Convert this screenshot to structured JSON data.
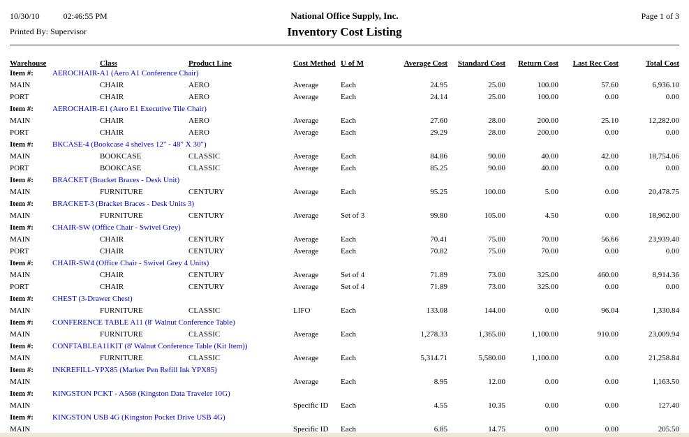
{
  "colors": {
    "link": "#0000cc",
    "window_edge": "#ece9d8"
  },
  "header": {
    "date": "10/30/10",
    "time": "02:46:55 PM",
    "printed_by": "Printed By: Supervisor",
    "company": "National Office Supply, Inc.",
    "title": "Inventory Cost Listing",
    "page": "Page 1 of 3"
  },
  "table": {
    "item_label": "Item #:",
    "columns": [
      "Warehouse",
      "Class",
      "Product Line",
      "Cost Method",
      "U of M",
      "Average Cost",
      "Standard Cost",
      "Return Cost",
      "Last Rec Cost",
      "Total Cost"
    ],
    "field_order": [
      "warehouse",
      "class",
      "product_line",
      "cost_method",
      "uom",
      "average_cost",
      "standard_cost",
      "return_cost",
      "last_rec_cost",
      "total_cost"
    ],
    "numeric_fields": [
      "average_cost",
      "standard_cost",
      "return_cost",
      "last_rec_cost",
      "total_cost"
    ],
    "items": [
      {
        "code_desc": "AEROCHAIR-A1 (Aero A1 Conference Chair)",
        "rows": [
          {
            "warehouse": "MAIN",
            "class": "CHAIR",
            "product_line": "AERO",
            "cost_method": "Average",
            "uom": "Each",
            "average_cost": "24.95",
            "standard_cost": "25.00",
            "return_cost": "100.00",
            "last_rec_cost": "57.60",
            "total_cost": "6,936.10"
          },
          {
            "warehouse": "PORT",
            "class": "CHAIR",
            "product_line": "AERO",
            "cost_method": "Average",
            "uom": "Each",
            "average_cost": "24.14",
            "standard_cost": "25.00",
            "return_cost": "100.00",
            "last_rec_cost": "0.00",
            "total_cost": "0.00"
          }
        ]
      },
      {
        "code_desc": "AEROCHAIR-E1 (Aero E1 Executive Tile Chair)",
        "rows": [
          {
            "warehouse": "MAIN",
            "class": "CHAIR",
            "product_line": "AERO",
            "cost_method": "Average",
            "uom": "Each",
            "average_cost": "27.60",
            "standard_cost": "28.00",
            "return_cost": "200.00",
            "last_rec_cost": "25.10",
            "total_cost": "12,282.00"
          },
          {
            "warehouse": "PORT",
            "class": "CHAIR",
            "product_line": "AERO",
            "cost_method": "Average",
            "uom": "Each",
            "average_cost": "29.29",
            "standard_cost": "28.00",
            "return_cost": "200.00",
            "last_rec_cost": "0.00",
            "total_cost": "0.00"
          }
        ]
      },
      {
        "code_desc": "BKCASE-4 (Bookcase 4 shelves 12\" - 48\" X 30\")",
        "rows": [
          {
            "warehouse": "MAIN",
            "class": "BOOKCASE",
            "product_line": "CLASSIC",
            "cost_method": "Average",
            "uom": "Each",
            "average_cost": "84.86",
            "standard_cost": "90.00",
            "return_cost": "40.00",
            "last_rec_cost": "42.00",
            "total_cost": "18,754.06"
          },
          {
            "warehouse": "PORT",
            "class": "BOOKCASE",
            "product_line": "CLASSIC",
            "cost_method": "Average",
            "uom": "Each",
            "average_cost": "85.25",
            "standard_cost": "90.00",
            "return_cost": "40.00",
            "last_rec_cost": "0.00",
            "total_cost": "0.00"
          }
        ]
      },
      {
        "code_desc": "BRACKET (Bracket Braces - Desk Unit)",
        "rows": [
          {
            "warehouse": "MAIN",
            "class": "FURNITURE",
            "product_line": "CENTURY",
            "cost_method": "Average",
            "uom": "Each",
            "average_cost": "95.25",
            "standard_cost": "100.00",
            "return_cost": "5.00",
            "last_rec_cost": "0.00",
            "total_cost": "20,478.75"
          }
        ]
      },
      {
        "code_desc": "BRACKET-3 (Bracket Braces - Desk Units 3)",
        "rows": [
          {
            "warehouse": "MAIN",
            "class": "FURNITURE",
            "product_line": "CENTURY",
            "cost_method": "Average",
            "uom": "Set of 3",
            "average_cost": "99.80",
            "standard_cost": "105.00",
            "return_cost": "4.50",
            "last_rec_cost": "0.00",
            "total_cost": "18,962.00"
          }
        ]
      },
      {
        "code_desc": "CHAIR-SW (Office Chair - Swivel Grey)",
        "rows": [
          {
            "warehouse": "MAIN",
            "class": "CHAIR",
            "product_line": "CENTURY",
            "cost_method": "Average",
            "uom": "Each",
            "average_cost": "70.41",
            "standard_cost": "75.00",
            "return_cost": "70.00",
            "last_rec_cost": "56.66",
            "total_cost": "23,939.40"
          },
          {
            "warehouse": "PORT",
            "class": "CHAIR",
            "product_line": "CENTURY",
            "cost_method": "Average",
            "uom": "Each",
            "average_cost": "70.82",
            "standard_cost": "75.00",
            "return_cost": "70.00",
            "last_rec_cost": "0.00",
            "total_cost": "0.00"
          }
        ]
      },
      {
        "code_desc": "CHAIR-SW4 (Office Chair - Swivel Grey 4 Units)",
        "rows": [
          {
            "warehouse": "MAIN",
            "class": "CHAIR",
            "product_line": "CENTURY",
            "cost_method": "Average",
            "uom": "Set of 4",
            "average_cost": "71.89",
            "standard_cost": "73.00",
            "return_cost": "325.00",
            "last_rec_cost": "460.00",
            "total_cost": "8,914.36"
          },
          {
            "warehouse": "PORT",
            "class": "CHAIR",
            "product_line": "CENTURY",
            "cost_method": "Average",
            "uom": "Set of 4",
            "average_cost": "71.89",
            "standard_cost": "73.00",
            "return_cost": "325.00",
            "last_rec_cost": "0.00",
            "total_cost": "0.00"
          }
        ]
      },
      {
        "code_desc": "CHEST (3-Drawer Chest)",
        "rows": [
          {
            "warehouse": "MAIN",
            "class": "FURNITURE",
            "product_line": "CLASSIC",
            "cost_method": "LIFO",
            "uom": "Each",
            "average_cost": "133.08",
            "standard_cost": "144.00",
            "return_cost": "0.00",
            "last_rec_cost": "96.04",
            "total_cost": "1,330.84"
          }
        ]
      },
      {
        "code_desc": "CONFERENCE TABLE A11 (8' Walnut Conference Table)",
        "rows": [
          {
            "warehouse": "MAIN",
            "class": "FURNITURE",
            "product_line": "CLASSIC",
            "cost_method": "Average",
            "uom": "Each",
            "average_cost": "1,278.33",
            "standard_cost": "1,365.00",
            "return_cost": "1,100.00",
            "last_rec_cost": "910.00",
            "total_cost": "23,009.94"
          }
        ]
      },
      {
        "code_desc": "CONFTABLEA11KIT (8' Walnut Conference Table (Kit Item))",
        "rows": [
          {
            "warehouse": "MAIN",
            "class": "FURNITURE",
            "product_line": "CLASSIC",
            "cost_method": "Average",
            "uom": "Each",
            "average_cost": "5,314.71",
            "standard_cost": "5,580.00",
            "return_cost": "1,100.00",
            "last_rec_cost": "0.00",
            "total_cost": "21,258.84"
          }
        ]
      },
      {
        "code_desc": "INKREFILL-YPX85 (Marker Pen Refill Ink YPX85)",
        "rows": [
          {
            "warehouse": "MAIN",
            "class": "",
            "product_line": "",
            "cost_method": "Average",
            "uom": "Each",
            "average_cost": "8.95",
            "standard_cost": "12.00",
            "return_cost": "0.00",
            "last_rec_cost": "0.00",
            "total_cost": "1,163.50"
          }
        ]
      },
      {
        "code_desc": "KINGSTON PCKT - A568 (Kingston Data Traveler 10G)",
        "rows": [
          {
            "warehouse": "MAIN",
            "class": "",
            "product_line": "",
            "cost_method": "Specific ID",
            "uom": "Each",
            "average_cost": "4.55",
            "standard_cost": "10.35",
            "return_cost": "0.00",
            "last_rec_cost": "0.00",
            "total_cost": "127.40"
          }
        ]
      },
      {
        "code_desc": "KINGSTON USB 4G (Kingston Pocket Drive USB 4G)",
        "rows": [
          {
            "warehouse": "MAIN",
            "class": "",
            "product_line": "",
            "cost_method": "Specific ID",
            "uom": "Each",
            "average_cost": "6.85",
            "standard_cost": "14.75",
            "return_cost": "0.00",
            "last_rec_cost": "0.00",
            "total_cost": "205.50"
          }
        ]
      }
    ]
  }
}
